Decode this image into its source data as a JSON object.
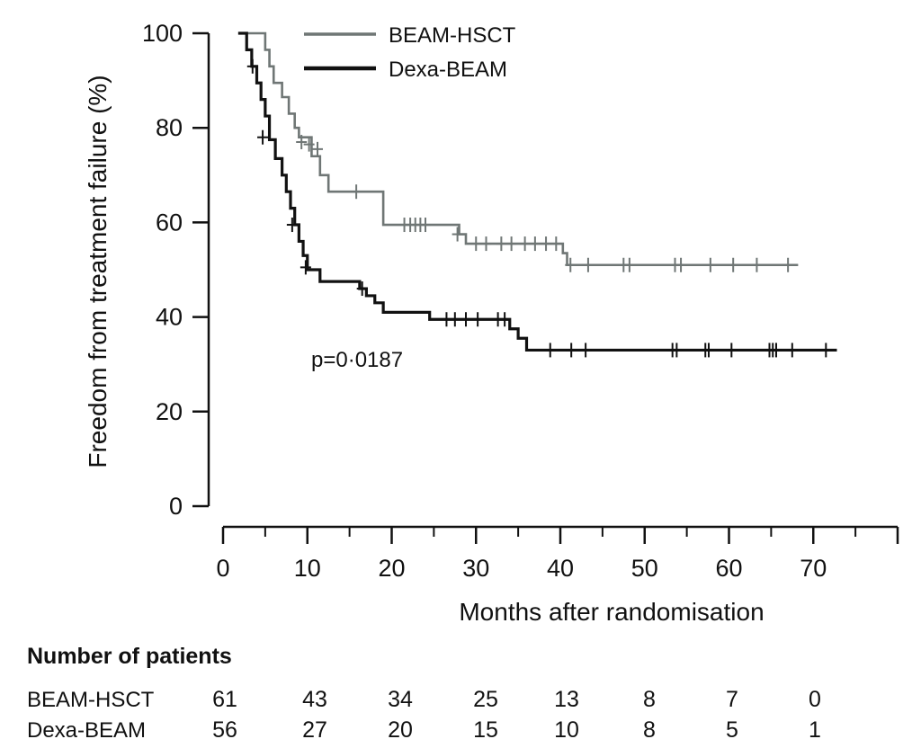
{
  "chart_data": {
    "type": "line",
    "subtype": "kaplan-meier",
    "title": "",
    "ylabel": "Freedom from treatment failure (%)",
    "xlabel": "Months after randomisation",
    "ylim": [
      0,
      100
    ],
    "xlim": [
      0,
      80
    ],
    "yticks": [
      0,
      20,
      40,
      60,
      80,
      100
    ],
    "xticks": [
      0,
      10,
      20,
      30,
      40,
      50,
      60,
      70
    ],
    "legend_position": "top",
    "annotation": "p=0·0187",
    "series": [
      {
        "name": "BEAM-HSCT",
        "color": "#6f7675",
        "steps": [
          [
            1.8,
            100
          ],
          [
            4.5,
            100
          ],
          [
            5.0,
            96.5
          ],
          [
            5.5,
            93
          ],
          [
            6.0,
            89.5
          ],
          [
            7.0,
            86.5
          ],
          [
            7.8,
            83
          ],
          [
            8.5,
            80
          ],
          [
            9.0,
            78
          ],
          [
            10.5,
            74
          ],
          [
            11.5,
            70
          ],
          [
            12.5,
            66.5
          ],
          [
            19.0,
            59.5
          ],
          [
            28.0,
            57.5
          ],
          [
            28.8,
            55.5
          ],
          [
            40.3,
            53.5
          ],
          [
            40.8,
            51
          ]
        ],
        "end_x": 68.2,
        "censor": [
          [
            9.3,
            77
          ],
          [
            10.2,
            76.5
          ],
          [
            11.2,
            75.5
          ],
          [
            15.8,
            66.5
          ],
          [
            21.5,
            59.5
          ],
          [
            22.2,
            59.5
          ],
          [
            22.8,
            59.5
          ],
          [
            23.4,
            59.5
          ],
          [
            24.0,
            59.5
          ],
          [
            27.8,
            57.5
          ],
          [
            30.0,
            55.5
          ],
          [
            31.2,
            55.5
          ],
          [
            33.0,
            55.5
          ],
          [
            34.2,
            55.5
          ],
          [
            35.8,
            55.5
          ],
          [
            37.0,
            55.5
          ],
          [
            38.3,
            55.5
          ],
          [
            39.5,
            55.5
          ],
          [
            41.2,
            51
          ],
          [
            43.3,
            51
          ],
          [
            47.5,
            51
          ],
          [
            48.2,
            51
          ],
          [
            53.6,
            51
          ],
          [
            54.3,
            51
          ],
          [
            57.8,
            51
          ],
          [
            60.5,
            51
          ],
          [
            63.3,
            51
          ],
          [
            67.0,
            51
          ]
        ]
      },
      {
        "name": "Dexa-BEAM",
        "color": "#111111",
        "steps": [
          [
            1.8,
            100
          ],
          [
            2.8,
            96.5
          ],
          [
            3.4,
            93
          ],
          [
            4.0,
            89.5
          ],
          [
            4.5,
            86
          ],
          [
            5.0,
            82.5
          ],
          [
            5.5,
            77.5
          ],
          [
            6.2,
            73.5
          ],
          [
            7.0,
            70
          ],
          [
            7.5,
            66.5
          ],
          [
            8.0,
            63
          ],
          [
            8.5,
            59.5
          ],
          [
            9.0,
            56
          ],
          [
            9.5,
            53
          ],
          [
            10.0,
            50
          ],
          [
            11.5,
            47.5
          ],
          [
            16.2,
            46
          ],
          [
            17.0,
            44.5
          ],
          [
            18.0,
            43
          ],
          [
            19.0,
            41
          ],
          [
            24.5,
            39.5
          ],
          [
            34.0,
            37.5
          ],
          [
            35.0,
            35.5
          ],
          [
            36.0,
            33
          ]
        ],
        "end_x": 72.8,
        "censor": [
          [
            3.5,
            93
          ],
          [
            4.7,
            78
          ],
          [
            8.2,
            59.5
          ],
          [
            9.8,
            50.5
          ],
          [
            16.5,
            46
          ],
          [
            26.5,
            39.5
          ],
          [
            27.5,
            39.5
          ],
          [
            28.8,
            39.5
          ],
          [
            30.2,
            39.5
          ],
          [
            32.6,
            39.5
          ],
          [
            33.4,
            39.5
          ],
          [
            38.8,
            33
          ],
          [
            41.3,
            33
          ],
          [
            43.0,
            33
          ],
          [
            53.3,
            33
          ],
          [
            53.8,
            33
          ],
          [
            57.2,
            33
          ],
          [
            57.6,
            33
          ],
          [
            60.3,
            33
          ],
          [
            64.8,
            33
          ],
          [
            65.2,
            33
          ],
          [
            65.6,
            33
          ],
          [
            67.5,
            33
          ],
          [
            71.5,
            33
          ]
        ]
      }
    ],
    "risk_table": {
      "title": "Number of patients",
      "rows": [
        {
          "label": "BEAM-HSCT",
          "counts": [
            61,
            43,
            34,
            25,
            13,
            8,
            7,
            0
          ]
        },
        {
          "label": "Dexa-BEAM",
          "counts": [
            56,
            27,
            20,
            15,
            10,
            8,
            5,
            1
          ]
        }
      ]
    }
  }
}
